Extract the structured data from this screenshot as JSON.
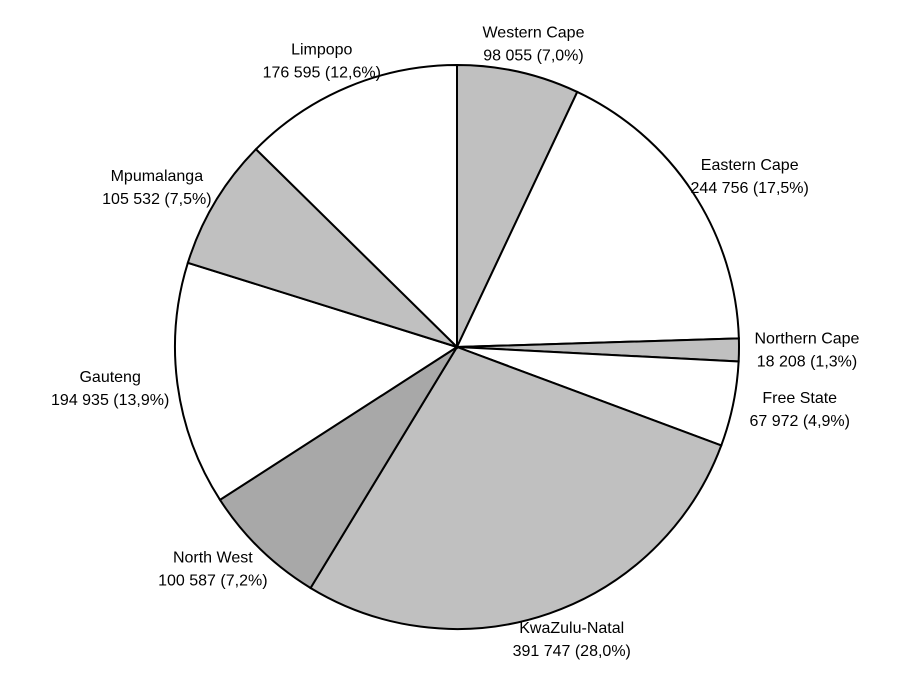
{
  "chart_data": {
    "type": "pie",
    "categories": [
      "Western Cape",
      "Eastern Cape",
      "Northern Cape",
      "Free State",
      "KwaZulu-Natal",
      "North West",
      "Gauteng",
      "Mpumalanga",
      "Limpopo"
    ],
    "values": [
      98055,
      244756,
      18208,
      67972,
      391747,
      100587,
      194935,
      105532,
      176595
    ],
    "value_labels": [
      "98 055 (7,0%)",
      "244 756 (17,5%)",
      "18 208 (1,3%)",
      "67 972 (4,9%)",
      "391 747 (28,0%)",
      "100 587 (7,2%)",
      "194 935 (13,9%)",
      "105 532 (7,5%)",
      "176 595 (12,6%)"
    ],
    "colors": [
      "#c0c0c0",
      "#ffffff",
      "#c0c0c0",
      "#ffffff",
      "#c0c0c0",
      "#a8a8a8",
      "#ffffff",
      "#c0c0c0",
      "#ffffff"
    ]
  }
}
